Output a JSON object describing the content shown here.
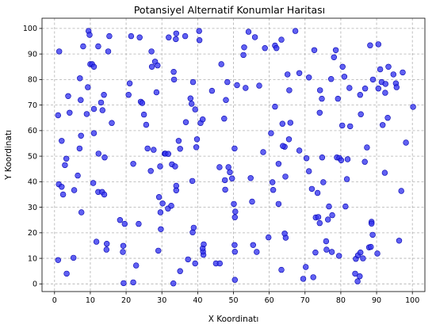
{
  "chart_data": {
    "type": "scatter",
    "title": "Potansiyel Alternatif Konumlar Haritası",
    "xlabel": "X Koordinatı",
    "ylabel": "Y Koordinatı",
    "xlim": [
      -3.5,
      103.5
    ],
    "ylim": [
      -3,
      104
    ],
    "xticks": [
      0,
      10,
      20,
      30,
      40,
      50,
      60,
      70,
      80,
      90,
      100
    ],
    "yticks": [
      0,
      10,
      20,
      30,
      40,
      50,
      60,
      70,
      80,
      90,
      100
    ],
    "xtick_labels": [
      "0",
      "10",
      "20",
      "30",
      "40",
      "50",
      "60",
      "70",
      "80",
      "90",
      "100"
    ],
    "ytick_labels": [
      "0",
      "10",
      "20",
      "30",
      "40",
      "50",
      "60",
      "70",
      "80",
      "90",
      "100"
    ],
    "grid": true,
    "marker_fill": "#3333ee",
    "marker_edge": "#0000b0",
    "points": [
      [
        1.3,
        91
      ],
      [
        1.0,
        66
      ],
      [
        4.2,
        67
      ],
      [
        3.8,
        73.5
      ],
      [
        2,
        56
      ],
      [
        1.2,
        39
      ],
      [
        2,
        38
      ],
      [
        2.4,
        35
      ],
      [
        2.9,
        46.5
      ],
      [
        3.3,
        49
      ],
      [
        1.0,
        9.3
      ],
      [
        3.4,
        4
      ],
      [
        5.3,
        10.2
      ],
      [
        5.5,
        36.7
      ],
      [
        6.5,
        42.4
      ],
      [
        7.0,
        53
      ],
      [
        7.4,
        58
      ],
      [
        7.5,
        28
      ],
      [
        7.3,
        72
      ],
      [
        7.1,
        80.5
      ],
      [
        8,
        93
      ],
      [
        9,
        66.5
      ],
      [
        9.3,
        77
      ],
      [
        9.5,
        99
      ],
      [
        9.8,
        97.5
      ],
      [
        10,
        86
      ],
      [
        10.5,
        86
      ],
      [
        11,
        85
      ],
      [
        11,
        68.5
      ],
      [
        11,
        59
      ],
      [
        10.8,
        39.5
      ],
      [
        11.7,
        16.5
      ],
      [
        12.2,
        93
      ],
      [
        12.3,
        51
      ],
      [
        12.2,
        36
      ],
      [
        13.3,
        36
      ],
      [
        13,
        71
      ],
      [
        13.4,
        68
      ],
      [
        13.8,
        74
      ],
      [
        13.9,
        35
      ],
      [
        14,
        49.5
      ],
      [
        14.5,
        13.4
      ],
      [
        14.6,
        15.7
      ],
      [
        15.3,
        97
      ],
      [
        15,
        91
      ],
      [
        16,
        63
      ],
      [
        18.3,
        25
      ],
      [
        19.2,
        14.9
      ],
      [
        19.1,
        12.5
      ],
      [
        19.6,
        23.5
      ],
      [
        19.3,
        0.3
      ],
      [
        20.7,
        74
      ],
      [
        21,
        78.5
      ],
      [
        21.4,
        97
      ],
      [
        22,
        47
      ],
      [
        22,
        0.6
      ],
      [
        22.8,
        7.2
      ],
      [
        23.5,
        23.5
      ],
      [
        23.8,
        96.5
      ],
      [
        24.1,
        71.3
      ],
      [
        24.5,
        70.8
      ],
      [
        25,
        66.3
      ],
      [
        25.6,
        62.3
      ],
      [
        26,
        53
      ],
      [
        26.9,
        44.2
      ],
      [
        27.1,
        91
      ],
      [
        27.2,
        85
      ],
      [
        27.7,
        52.5
      ],
      [
        28.1,
        87
      ],
      [
        28.5,
        75
      ],
      [
        28.8,
        85.5
      ],
      [
        29,
        13
      ],
      [
        29.2,
        34
      ],
      [
        29.5,
        46
      ],
      [
        29.7,
        21.4
      ],
      [
        29.6,
        28
      ],
      [
        30.2,
        31.5
      ],
      [
        30.8,
        51
      ],
      [
        31,
        51
      ],
      [
        31.8,
        50.9
      ],
      [
        31.7,
        29.5
      ],
      [
        31.9,
        96.5
      ],
      [
        32.6,
        30.6
      ],
      [
        32.8,
        46.8
      ],
      [
        33.3,
        83
      ],
      [
        33.4,
        80
      ],
      [
        33.2,
        0.2
      ],
      [
        33.7,
        46
      ],
      [
        33.9,
        95.8
      ],
      [
        34,
        98
      ],
      [
        34,
        38.4
      ],
      [
        34,
        36.6
      ],
      [
        34.7,
        56
      ],
      [
        35.1,
        52.9
      ],
      [
        35.1,
        5
      ],
      [
        36.5,
        97
      ],
      [
        36.7,
        63.3
      ],
      [
        37.3,
        9.6
      ],
      [
        38,
        72.6
      ],
      [
        38.3,
        70.5
      ],
      [
        38.5,
        40.3
      ],
      [
        38.7,
        79
      ],
      [
        38.6,
        20.2
      ],
      [
        38.9,
        22
      ],
      [
        39.3,
        68.3
      ],
      [
        39.6,
        53.5
      ],
      [
        39.3,
        8
      ],
      [
        39.8,
        56.6
      ],
      [
        40.4,
        99
      ],
      [
        40.5,
        95.4
      ],
      [
        40.8,
        63
      ],
      [
        41.4,
        64.4
      ],
      [
        41.6,
        11.4
      ],
      [
        41.5,
        12.7
      ],
      [
        41.4,
        13.9
      ],
      [
        41.7,
        15.5
      ],
      [
        44,
        75.6
      ],
      [
        45.1,
        8
      ],
      [
        46.2,
        8
      ],
      [
        46.1,
        45.7
      ],
      [
        46.6,
        86
      ],
      [
        47.4,
        64.7
      ],
      [
        47.6,
        40.6
      ],
      [
        47.7,
        36.9
      ],
      [
        47.9,
        72
      ],
      [
        48.3,
        79
      ],
      [
        48.6,
        45.7
      ],
      [
        49,
        43.7
      ],
      [
        49.6,
        41.3
      ],
      [
        50.3,
        53
      ],
      [
        50.1,
        31.3
      ],
      [
        50.4,
        26.1
      ],
      [
        50.4,
        1.6
      ],
      [
        50.3,
        15.2
      ],
      [
        50.4,
        12.6
      ],
      [
        50.5,
        28.3
      ],
      [
        51,
        77.8
      ],
      [
        52.8,
        89.6
      ],
      [
        53,
        92.6
      ],
      [
        53.4,
        76.7
      ],
      [
        54.2,
        98.7
      ],
      [
        54.8,
        41.4
      ],
      [
        55.2,
        32.2
      ],
      [
        55.5,
        15.2
      ],
      [
        56,
        96.6
      ],
      [
        56.5,
        12.5
      ],
      [
        57.2,
        77.6
      ],
      [
        58.3,
        51.6
      ],
      [
        58.8,
        92.3
      ],
      [
        59.8,
        18.2
      ],
      [
        60.5,
        59
      ],
      [
        60.9,
        39.8
      ],
      [
        61.1,
        36.8
      ],
      [
        61.6,
        69.4
      ],
      [
        61.6,
        93.3
      ],
      [
        62,
        92.3
      ],
      [
        62.6,
        47
      ],
      [
        62.6,
        31.3
      ],
      [
        63.4,
        5.5
      ],
      [
        63.4,
        95.6
      ],
      [
        63.7,
        62.7
      ],
      [
        64.3,
        53.7
      ],
      [
        64.6,
        18.1
      ],
      [
        64.3,
        19.7
      ],
      [
        64.5,
        42
      ],
      [
        65.1,
        82
      ],
      [
        65.5,
        56.6
      ],
      [
        65.6,
        75.8
      ],
      [
        65.9,
        63.1
      ],
      [
        67.3,
        99
      ],
      [
        68.4,
        82.5
      ],
      [
        68.4,
        52.2
      ],
      [
        69.5,
        2
      ],
      [
        70.2,
        6.6
      ],
      [
        70.4,
        49.2
      ],
      [
        71.1,
        80.8
      ],
      [
        71.1,
        44.1
      ],
      [
        71.9,
        37.2
      ],
      [
        72.3,
        2.6
      ],
      [
        72.6,
        91.5
      ],
      [
        72.9,
        12.3
      ],
      [
        73,
        26
      ],
      [
        73.7,
        26.2
      ],
      [
        73.5,
        35.6
      ],
      [
        74.1,
        23.8
      ],
      [
        74.1,
        67
      ],
      [
        74.2,
        75.8
      ],
      [
        74.7,
        72.5
      ],
      [
        74.8,
        49.5
      ],
      [
        75.1,
        39.8
      ],
      [
        75.9,
        16.7
      ],
      [
        76.7,
        30.3
      ],
      [
        76.4,
        25.2
      ],
      [
        76,
        13.4
      ],
      [
        77.3,
        80.2
      ],
      [
        77.6,
        26.9
      ],
      [
        77.5,
        12.5
      ],
      [
        78.1,
        88.7
      ],
      [
        78.6,
        91.5
      ],
      [
        78.9,
        49.5
      ],
      [
        79.2,
        72.5
      ],
      [
        79.5,
        11
      ],
      [
        79.6,
        49.3
      ],
      [
        80.1,
        48.4
      ],
      [
        80.4,
        62
      ],
      [
        80.5,
        85
      ],
      [
        81,
        81.1
      ],
      [
        81.3,
        30.3
      ],
      [
        81.7,
        41
      ],
      [
        81.9,
        48.8
      ],
      [
        82.6,
        61.7
      ],
      [
        82.4,
        76.7
      ],
      [
        84,
        4
      ],
      [
        84.2,
        9.8
      ],
      [
        84.8,
        11.2
      ],
      [
        84.7,
        1
      ],
      [
        85.3,
        3
      ],
      [
        85.5,
        12.3
      ],
      [
        85.4,
        74
      ],
      [
        85.6,
        66.4
      ],
      [
        86.2,
        10
      ],
      [
        86.7,
        47.8
      ],
      [
        86.8,
        76.5
      ],
      [
        87.3,
        53.4
      ],
      [
        87.9,
        14.3
      ],
      [
        88.2,
        93.4
      ],
      [
        88.4,
        14.5
      ],
      [
        88.6,
        24.3
      ],
      [
        88.6,
        23.6
      ],
      [
        88.9,
        19.2
      ],
      [
        89,
        80
      ],
      [
        90.2,
        11.9
      ],
      [
        90.5,
        76.5
      ],
      [
        90.5,
        93.8
      ],
      [
        91,
        84
      ],
      [
        91.4,
        79
      ],
      [
        91.7,
        62.2
      ],
      [
        92.4,
        74.8
      ],
      [
        92.3,
        43.5
      ],
      [
        92.5,
        78.3
      ],
      [
        93.1,
        65
      ],
      [
        93.3,
        85
      ],
      [
        94.7,
        82
      ],
      [
        95.4,
        78.5
      ],
      [
        95.6,
        77
      ],
      [
        96.3,
        16.9
      ],
      [
        96.9,
        36.4
      ],
      [
        97.3,
        82.8
      ],
      [
        98.2,
        55.3
      ],
      [
        100.2,
        69.3
      ],
      [
        63.8,
        54
      ]
    ]
  }
}
